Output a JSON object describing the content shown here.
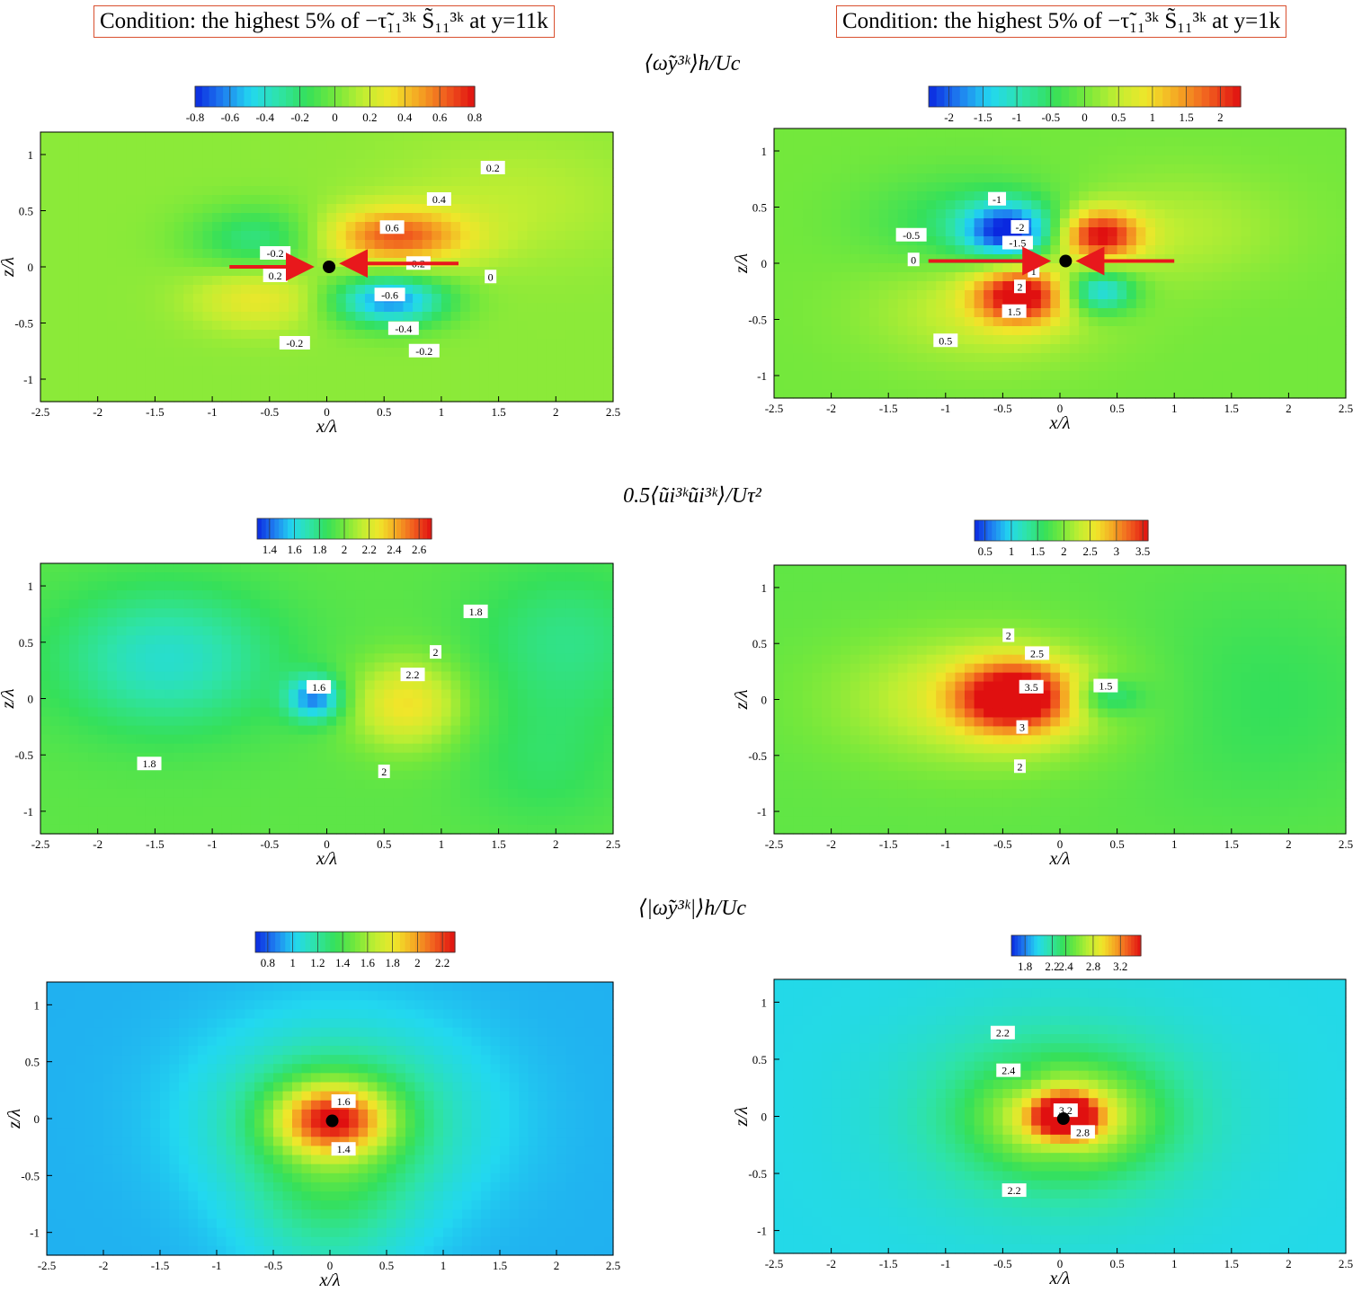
{
  "conditions": {
    "left": "Condition: the highest 5% of −τ̃₁₁³ᵏ S̃₁₁³ᵏ at y=11k",
    "right": "Condition: the highest 5% of −τ̃₁₁³ᵏ S̃₁₁³ᵏ at y=1k"
  },
  "row_titles": [
    "⟨ω̃y³ᵏ⟩h/Uc",
    "0.5⟨ũi³ᵏũi³ᵏ⟩/Uτ²",
    "⟨|ω̃y³ᵏ|⟩h/Uc"
  ],
  "colors": {
    "colormap": [
      "#0a28e0",
      "#1e7ff0",
      "#22d8f0",
      "#2ee3a8",
      "#35e05a",
      "#73e83c",
      "#c0ee32",
      "#f0e62a",
      "#f5a623",
      "#f05a1e",
      "#e01010"
    ],
    "arrow": "#e8181c",
    "marker": "#000000",
    "condition_border": "#d9502f"
  },
  "chart_data": [
    {
      "id": "omega-y-11k",
      "type": "heatmap",
      "xlabel": "x/λ",
      "ylabel": "z/λ",
      "xlim": [
        -2.5,
        2.5
      ],
      "ylim": [
        -1.2,
        1.2
      ],
      "xticks": [
        "-2.5",
        "-2",
        "-1.5",
        "-1",
        "-0.5",
        "0",
        "0.5",
        "1",
        "1.5",
        "2",
        "2.5"
      ],
      "yticks": [
        "-1",
        "-0.5",
        "0",
        "0.5",
        "1"
      ],
      "colorbar": {
        "range": [
          -0.8,
          0.8
        ],
        "ticks": [
          "-0.8",
          "-0.6",
          "-0.4",
          "-0.2",
          "0",
          "0.2",
          "0.4",
          "0.6",
          "0.8"
        ]
      },
      "background": 0.05,
      "features": [
        {
          "x": 0.6,
          "z": 0.27,
          "sx": 0.45,
          "sz": 0.18,
          "value": 0.62
        },
        {
          "x": 0.55,
          "z": -0.3,
          "sx": 0.35,
          "sz": 0.16,
          "value": -0.62
        },
        {
          "x": -0.6,
          "z": -0.28,
          "sx": 0.4,
          "sz": 0.2,
          "value": 0.3
        },
        {
          "x": -0.6,
          "z": 0.25,
          "sx": 0.4,
          "sz": 0.2,
          "value": -0.25
        },
        {
          "x": 1.6,
          "z": 0.6,
          "sx": 0.8,
          "sz": 0.4,
          "value": 0.15
        }
      ],
      "contour_labels": [
        {
          "text": "0.2",
          "x": 1.45,
          "z": 0.88
        },
        {
          "text": "0.4",
          "x": 0.98,
          "z": 0.6
        },
        {
          "text": "0.6",
          "x": 0.57,
          "z": 0.35
        },
        {
          "text": "-0.2",
          "x": -0.45,
          "z": 0.12
        },
        {
          "text": "0.2",
          "x": 0.8,
          "z": 0.03
        },
        {
          "text": "0.2",
          "x": -0.45,
          "z": -0.08
        },
        {
          "text": "0",
          "x": 1.43,
          "z": -0.09
        },
        {
          "text": "-0.6",
          "x": 0.55,
          "z": -0.25
        },
        {
          "text": "-0.4",
          "x": 0.67,
          "z": -0.55
        },
        {
          "text": "-0.2",
          "x": -0.28,
          "z": -0.68
        },
        {
          "text": "-0.2",
          "x": 0.85,
          "z": -0.75
        }
      ],
      "marker": {
        "x": 0.02,
        "z": 0.0
      },
      "arrows": [
        {
          "from": [
            -0.85,
            0.0
          ],
          "to": [
            -0.17,
            0.0
          ]
        },
        {
          "from": [
            1.15,
            0.03
          ],
          "to": [
            0.17,
            0.03
          ]
        }
      ]
    },
    {
      "id": "omega-y-1k",
      "type": "heatmap",
      "xlabel": "x/λ",
      "ylabel": "z/λ",
      "xlim": [
        -2.5,
        2.5
      ],
      "ylim": [
        -1.2,
        1.2
      ],
      "xticks": [
        "-2.5",
        "-2",
        "-1.5",
        "-1",
        "-0.5",
        "0",
        "0.5",
        "1",
        "1.5",
        "2",
        "2.5"
      ],
      "yticks": [
        "-1",
        "-0.5",
        "0",
        "0.5",
        "1"
      ],
      "colorbar": {
        "range": [
          -2.3,
          2.3
        ],
        "ticks": [
          "-2",
          "-1.5",
          "-1",
          "-0.5",
          "0",
          "0.5",
          "1",
          "1.5",
          "2"
        ]
      },
      "background": 0.0,
      "features": [
        {
          "x": -0.45,
          "z": 0.28,
          "sx": 0.28,
          "sz": 0.18,
          "value": -2.1
        },
        {
          "x": 0.35,
          "z": 0.25,
          "sx": 0.25,
          "sz": 0.16,
          "value": 2.2
        },
        {
          "x": -0.35,
          "z": -0.28,
          "sx": 0.28,
          "sz": 0.18,
          "value": 2.2
        },
        {
          "x": 0.35,
          "z": -0.25,
          "sx": 0.22,
          "sz": 0.14,
          "value": -1.6
        },
        {
          "x": -0.8,
          "z": 0.35,
          "sx": 0.6,
          "sz": 0.3,
          "value": -0.6
        },
        {
          "x": -0.6,
          "z": -0.4,
          "sx": 0.7,
          "sz": 0.35,
          "value": 0.6
        },
        {
          "x": 1.0,
          "z": 0.3,
          "sx": 0.7,
          "sz": 0.35,
          "value": 0.4
        }
      ],
      "contour_labels": [
        {
          "text": "-1",
          "x": -0.55,
          "z": 0.57
        },
        {
          "text": "-2",
          "x": -0.35,
          "z": 0.32
        },
        {
          "text": "-0.5",
          "x": -1.3,
          "z": 0.25
        },
        {
          "text": "-1.5",
          "x": -0.37,
          "z": 0.18
        },
        {
          "text": "0",
          "x": -1.28,
          "z": 0.03
        },
        {
          "text": "1",
          "x": -0.23,
          "z": -0.07
        },
        {
          "text": "2",
          "x": -0.35,
          "z": -0.21
        },
        {
          "text": "1.5",
          "x": -0.4,
          "z": -0.43
        },
        {
          "text": "0.5",
          "x": -1.0,
          "z": -0.69
        }
      ],
      "marker": {
        "x": 0.05,
        "z": 0.02
      },
      "arrows": [
        {
          "from": [
            -1.15,
            0.02
          ],
          "to": [
            -0.14,
            0.02
          ]
        },
        {
          "from": [
            1.0,
            0.02
          ],
          "to": [
            0.2,
            0.02
          ]
        }
      ]
    },
    {
      "id": "tke-11k",
      "type": "heatmap",
      "xlabel": "x/λ",
      "ylabel": "z/λ",
      "xlim": [
        -2.5,
        2.5
      ],
      "ylim": [
        -1.2,
        1.2
      ],
      "xticks": [
        "-2.5",
        "-2",
        "-1.5",
        "-1",
        "-0.5",
        "0",
        "0.5",
        "1",
        "1.5",
        "2",
        "2.5"
      ],
      "yticks": [
        "-1",
        "-0.5",
        "0",
        "0.5",
        "1"
      ],
      "colorbar": {
        "range": [
          1.3,
          2.7
        ],
        "ticks": [
          "1.4",
          "1.6",
          "1.8",
          "2",
          "2.2",
          "2.4",
          "2.6"
        ]
      },
      "background": 1.95,
      "features": [
        {
          "x": -1.4,
          "z": 0.35,
          "sx": 0.7,
          "sz": 0.45,
          "value": 1.65
        },
        {
          "x": -0.1,
          "z": 0.0,
          "sx": 0.17,
          "sz": 0.14,
          "value": 1.45
        },
        {
          "x": 0.7,
          "z": -0.05,
          "sx": 0.35,
          "sz": 0.28,
          "value": 2.3
        },
        {
          "x": 2.1,
          "z": 0.5,
          "sx": 0.6,
          "sz": 0.5,
          "value": 1.78
        },
        {
          "x": 1.9,
          "z": -0.6,
          "sx": 0.5,
          "sz": 0.4,
          "value": 1.85
        }
      ],
      "contour_labels": [
        {
          "text": "1.8",
          "x": 1.3,
          "z": 0.77
        },
        {
          "text": "2",
          "x": 0.95,
          "z": 0.41
        },
        {
          "text": "2.2",
          "x": 0.75,
          "z": 0.21
        },
        {
          "text": "1.6",
          "x": -0.07,
          "z": 0.1
        },
        {
          "text": "1.8",
          "x": -1.55,
          "z": -0.58
        },
        {
          "text": "2",
          "x": 0.5,
          "z": -0.65
        }
      ]
    },
    {
      "id": "tke-1k",
      "type": "heatmap",
      "xlabel": "x/λ",
      "ylabel": "z/λ",
      "xlim": [
        -2.5,
        2.5
      ],
      "ylim": [
        -1.2,
        1.2
      ],
      "xticks": [
        "-2.5",
        "-2",
        "-1.5",
        "-1",
        "-0.5",
        "0",
        "0.5",
        "1",
        "1.5",
        "2",
        "2.5"
      ],
      "yticks": [
        "-1",
        "-0.5",
        "0",
        "0.5",
        "1"
      ],
      "colorbar": {
        "range": [
          0.3,
          3.6
        ],
        "ticks": [
          "0.5",
          "1",
          "1.5",
          "2",
          "2.5",
          "3",
          "3.5"
        ]
      },
      "background": 1.85,
      "features": [
        {
          "x": -0.4,
          "z": 0.02,
          "sx": 0.35,
          "sz": 0.22,
          "value": 3.6
        },
        {
          "x": 0.4,
          "z": 0.02,
          "sx": 0.22,
          "sz": 0.12,
          "value": 1.2
        },
        {
          "x": -0.6,
          "z": 0.0,
          "sx": 0.9,
          "sz": 0.4,
          "value": 2.5
        },
        {
          "x": 1.7,
          "z": 0.0,
          "sx": 0.9,
          "sz": 0.7,
          "value": 1.6
        }
      ],
      "contour_labels": [
        {
          "text": "2",
          "x": -0.45,
          "z": 0.57
        },
        {
          "text": "2.5",
          "x": -0.2,
          "z": 0.41
        },
        {
          "text": "3.5",
          "x": -0.25,
          "z": 0.11
        },
        {
          "text": "1.5",
          "x": 0.4,
          "z": 0.12
        },
        {
          "text": "3",
          "x": -0.33,
          "z": -0.25
        },
        {
          "text": "2",
          "x": -0.35,
          "z": -0.6
        }
      ]
    },
    {
      "id": "abs-omega-11k",
      "type": "heatmap",
      "xlabel": "x/λ",
      "ylabel": "z/λ",
      "xlim": [
        -2.5,
        2.5
      ],
      "ylim": [
        -1.2,
        1.2
      ],
      "xticks": [
        "-2.5",
        "-2",
        "-1.5",
        "-1",
        "-0.5",
        "0",
        "0.5",
        "1",
        "1.5",
        "2",
        "2.5"
      ],
      "yticks": [
        "-1",
        "-0.5",
        "0",
        "0.5",
        "1"
      ],
      "colorbar": {
        "range": [
          0.7,
          2.3
        ],
        "ticks": [
          "0.8",
          "1",
          "1.2",
          "1.4",
          "1.6",
          "1.8",
          "2",
          "2.2"
        ]
      },
      "background": 0.95,
      "features": [
        {
          "x": 0.02,
          "z": 0.0,
          "sx": 0.35,
          "sz": 0.22,
          "value": 1.85
        },
        {
          "x": 0.1,
          "z": 0.0,
          "sx": 0.8,
          "sz": 0.55,
          "value": 1.3
        },
        {
          "x": 0.0,
          "z": -0.6,
          "sx": 0.5,
          "sz": 0.6,
          "value": 1.2
        }
      ],
      "contour_labels": [
        {
          "text": "1.6",
          "x": 0.12,
          "z": 0.15
        },
        {
          "text": "1.4",
          "x": 0.12,
          "z": -0.27
        }
      ],
      "marker": {
        "x": 0.02,
        "z": -0.02
      }
    },
    {
      "id": "abs-omega-1k",
      "type": "heatmap",
      "xlabel": "x/λ",
      "ylabel": "z/λ",
      "xlim": [
        -2.5,
        2.5
      ],
      "ylim": [
        -1.2,
        1.2
      ],
      "xticks": [
        "-2.5",
        "-2",
        "-1.5",
        "-1",
        "-0.5",
        "0",
        "0.5",
        "1",
        "1.5",
        "2",
        "2.5"
      ],
      "yticks": [
        "-1",
        "-0.5",
        "0",
        "0.5",
        "1"
      ],
      "colorbar": {
        "range": [
          1.6,
          3.5
        ],
        "ticks": [
          "1.8",
          "2.2",
          "2.4",
          "2.8",
          "3.2"
        ]
      },
      "background": 2.0,
      "features": [
        {
          "x": 0.05,
          "z": 0.0,
          "sx": 0.18,
          "sz": 0.12,
          "value": 3.3
        },
        {
          "x": 0.05,
          "z": 0.0,
          "sx": 0.5,
          "sz": 0.3,
          "value": 2.75
        },
        {
          "x": 0.0,
          "z": 0.0,
          "sx": 0.9,
          "sz": 0.6,
          "value": 2.3
        },
        {
          "x": -0.3,
          "z": 0.32,
          "sx": 0.15,
          "sz": 0.12,
          "value": 1.9
        },
        {
          "x": 0.0,
          "z": -0.32,
          "sx": 0.15,
          "sz": 0.12,
          "value": 1.9
        }
      ],
      "contour_labels": [
        {
          "text": "2.2",
          "x": -0.5,
          "z": 0.73
        },
        {
          "text": "2.4",
          "x": -0.45,
          "z": 0.4
        },
        {
          "text": "3.2",
          "x": 0.05,
          "z": 0.05
        },
        {
          "text": "2.8",
          "x": 0.2,
          "z": -0.14
        },
        {
          "text": "2.2",
          "x": -0.4,
          "z": -0.65
        }
      ],
      "marker": {
        "x": 0.03,
        "z": -0.02
      }
    }
  ]
}
